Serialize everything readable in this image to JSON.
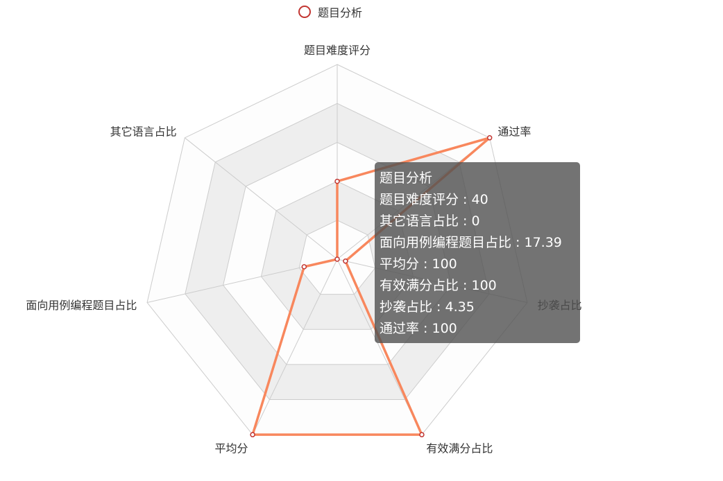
{
  "legend": {
    "label": "题目分析",
    "color": "#c23531"
  },
  "chart_data": {
    "type": "radar",
    "title": "",
    "indicators": [
      {
        "name": "题目难度评分",
        "max": 100
      },
      {
        "name": "通过率",
        "max": 100
      },
      {
        "name": "抄袭占比",
        "max": 100
      },
      {
        "name": "有效满分占比",
        "max": 100
      },
      {
        "name": "平均分",
        "max": 100
      },
      {
        "name": "面向用例编程题目占比",
        "max": 100
      },
      {
        "name": "其它语言占比",
        "max": 100
      }
    ],
    "series": [
      {
        "name": "题目分析",
        "values": [
          40,
          100,
          4.35,
          100,
          100,
          17.39,
          0
        ]
      }
    ],
    "split_number": 5,
    "line_color": "#f8875d",
    "point_color": "#c23531",
    "split_area_colors": [
      "#fdfdfd",
      "#eeeeee"
    ],
    "split_line_color": "#cccccc"
  },
  "tooltip": {
    "title": "题目分析",
    "rows": [
      {
        "label": "题目难度评分",
        "value": "40"
      },
      {
        "label": "其它语言占比",
        "value": "0"
      },
      {
        "label": "面向用例编程题目占比",
        "value": "17.39"
      },
      {
        "label": "平均分",
        "value": "100"
      },
      {
        "label": "有效满分占比",
        "value": "100"
      },
      {
        "label": "抄袭占比",
        "value": "4.35"
      },
      {
        "label": "通过率",
        "value": "100"
      }
    ]
  }
}
